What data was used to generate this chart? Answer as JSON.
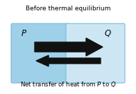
{
  "title": "Before thermal equilibrium",
  "subtitle": "Net transfer of heat from $P$ to $Q$",
  "box_left_color": "#9ed0ea",
  "box_right_color": "#cce6f4",
  "box_border_color": "#7ab8d8",
  "label_P": "$P$",
  "label_Q": "$Q$",
  "arrow_color": "#111111",
  "bg_color": "#ffffff",
  "title_fontsize": 6.5,
  "label_fontsize": 8.5,
  "subtitle_fontsize": 6.2,
  "fig_width": 1.96,
  "fig_height": 1.36,
  "dpi": 100
}
